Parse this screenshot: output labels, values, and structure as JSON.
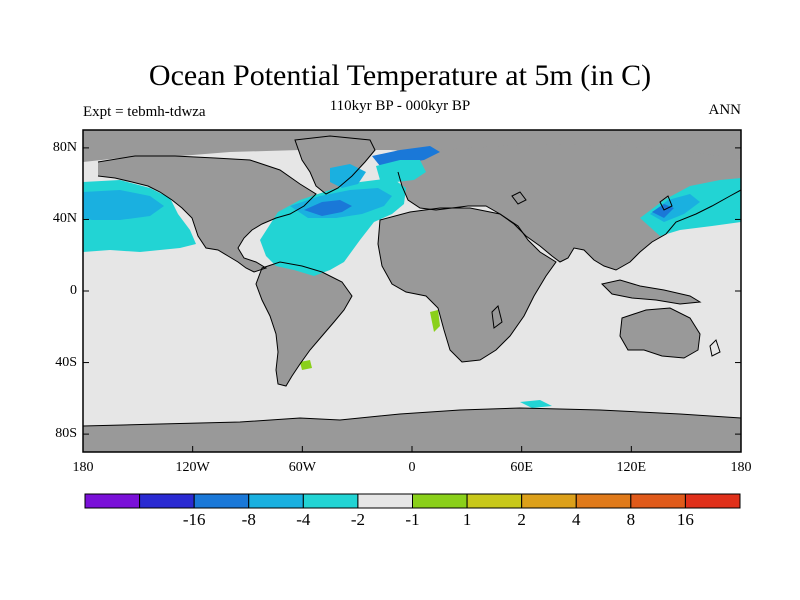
{
  "title": "Ocean Potential Temperature at 5m (in C)",
  "subtitle": "110kyr BP - 000kyr BP",
  "left_label": "Expt = tebmh-tdwza",
  "right_label": "ANN",
  "lat_ticks": [
    {
      "value": 80,
      "label": "80N"
    },
    {
      "value": 40,
      "label": "40N"
    },
    {
      "value": 0,
      "label": "0"
    },
    {
      "value": -40,
      "label": "40S"
    },
    {
      "value": -80,
      "label": "80S"
    }
  ],
  "lon_ticks": [
    {
      "value": -180,
      "label": "180"
    },
    {
      "value": -120,
      "label": "120W"
    },
    {
      "value": -60,
      "label": "60W"
    },
    {
      "value": 0,
      "label": "0"
    },
    {
      "value": 60,
      "label": "60E"
    },
    {
      "value": 120,
      "label": "120E"
    },
    {
      "value": 180,
      "label": "180"
    }
  ],
  "colorbar": {
    "colors": [
      "#7a10d8",
      "#2a2ad2",
      "#1a78d8",
      "#1ab0e0",
      "#22d4d4",
      "#e6e6e6",
      "#8ad01a",
      "#c8c81a",
      "#dca01a",
      "#e07a1a",
      "#e05a1a",
      "#e0301a"
    ],
    "labels": [
      "-16",
      "-8",
      "-4",
      "-2",
      "-1",
      "1",
      "2",
      "4",
      "8",
      "16"
    ]
  },
  "colors": {
    "land": "#999999",
    "ocean_neutral": "#e6e6e6",
    "ocean_cyan": "#22d4d4",
    "ocean_lightblue": "#1ab0e0",
    "ocean_blue": "#1a78d8",
    "ocean_green": "#8ad01a"
  }
}
